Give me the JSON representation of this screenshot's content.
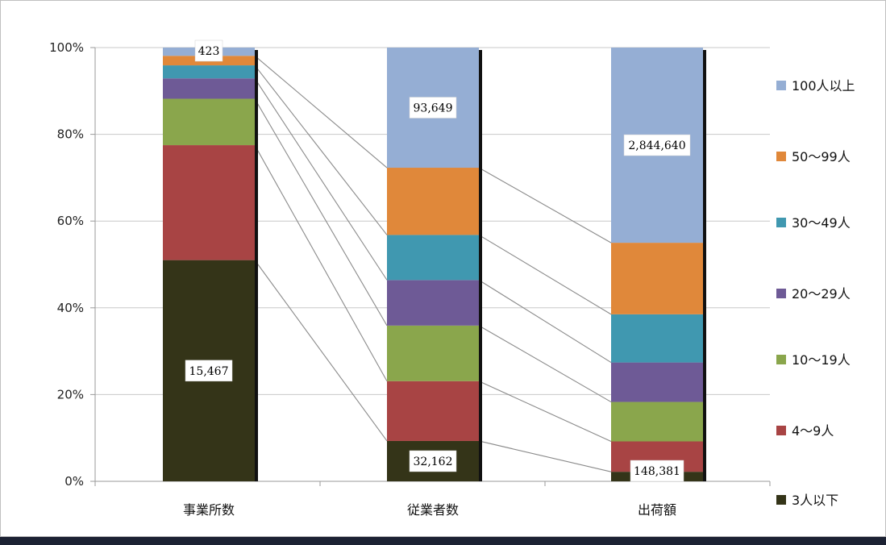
{
  "chart_data": {
    "type": "bar",
    "stacked": true,
    "percent": true,
    "categories": [
      "事業所数",
      "従業者数",
      "出荷額"
    ],
    "ylim": [
      0,
      100
    ],
    "yticks": [
      "0%",
      "20%",
      "40%",
      "60%",
      "80%",
      "100%"
    ],
    "grid": true,
    "legend_position": "right",
    "series": [
      {
        "name": "3人以下",
        "color": "#343418",
        "values": [
          51,
          9.3,
          2.2
        ]
      },
      {
        "name": "4～9人",
        "color": "#a84444",
        "values": [
          26.5,
          13.8,
          7.0
        ]
      },
      {
        "name": "10～19人",
        "color": "#8aa64c",
        "values": [
          10.7,
          12.8,
          9.1
        ]
      },
      {
        "name": "20～29人",
        "color": "#6e5a96",
        "values": [
          4.7,
          10.5,
          9.1
        ]
      },
      {
        "name": "30～49人",
        "color": "#4098b0",
        "values": [
          3.0,
          10.4,
          11.1
        ]
      },
      {
        "name": "50～99人",
        "color": "#e0883a",
        "values": [
          2.2,
          15.5,
          16.5
        ]
      },
      {
        "name": "100人以上",
        "color": "#95aed4",
        "values": [
          1.9,
          27.7,
          45.0
        ]
      }
    ],
    "data_labels": [
      {
        "category": 0,
        "series": 6,
        "text": "423"
      },
      {
        "category": 0,
        "series": 0,
        "text": "15,467"
      },
      {
        "category": 1,
        "series": 6,
        "text": "93,649"
      },
      {
        "category": 1,
        "series": 0,
        "text": "32,162"
      },
      {
        "category": 2,
        "series": 6,
        "text": "2,844,640"
      },
      {
        "category": 2,
        "series": 0,
        "text": "148,381"
      }
    ]
  }
}
